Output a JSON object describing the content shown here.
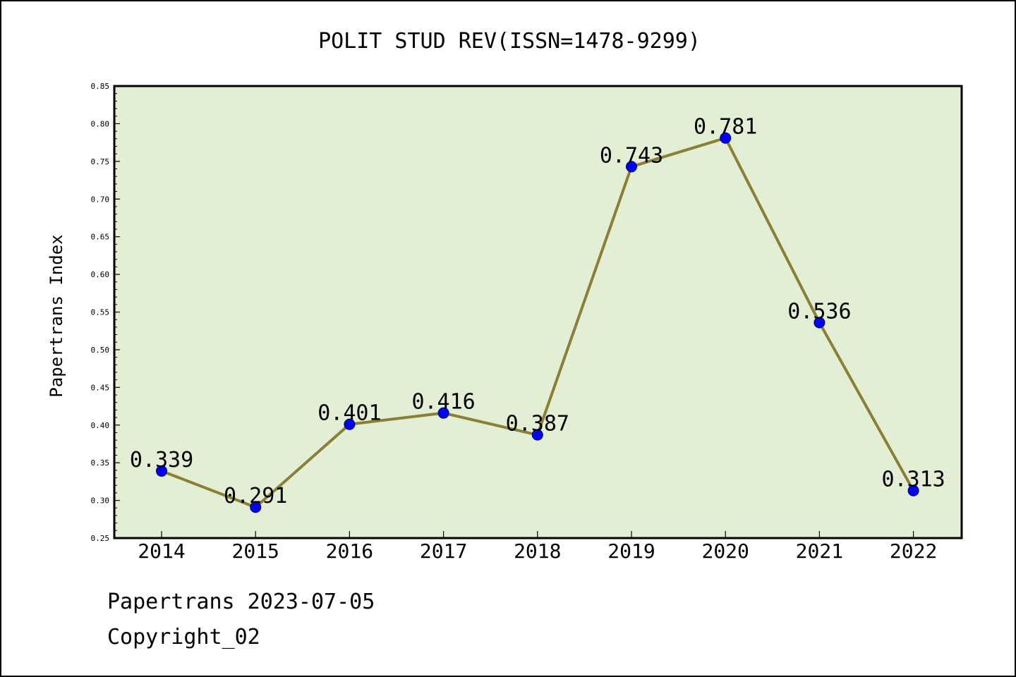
{
  "chart_data": {
    "type": "line",
    "title": "POLIT STUD REV(ISSN=1478-9299)",
    "xlabel": "",
    "ylabel": "Papertrans Index",
    "categories": [
      "2014",
      "2015",
      "2016",
      "2017",
      "2018",
      "2019",
      "2020",
      "2021",
      "2022"
    ],
    "series": [
      {
        "values": [
          0.339,
          0.291,
          0.401,
          0.416,
          0.387,
          0.743,
          0.781,
          0.536,
          0.313
        ],
        "data_labels": [
          "0.339",
          "0.291",
          "0.401",
          "0.416",
          "0.387",
          "0.743",
          "0.781",
          "0.536",
          "0.313"
        ]
      }
    ],
    "ylim": [
      0.25,
      0.85
    ],
    "yticks": [
      "0.25",
      "0.30",
      "0.35",
      "0.40",
      "0.45",
      "0.50",
      "0.55",
      "0.60",
      "0.65",
      "0.70",
      "0.75",
      "0.80",
      "0.85"
    ],
    "grid": false,
    "legend": "none",
    "colors": {
      "plot_background": "#e2efd5",
      "line": "#8b7f36",
      "marker": "#0000ff"
    }
  },
  "footer": {
    "line1": "Papertrans 2023-07-05",
    "line2": "Copyright_02"
  }
}
